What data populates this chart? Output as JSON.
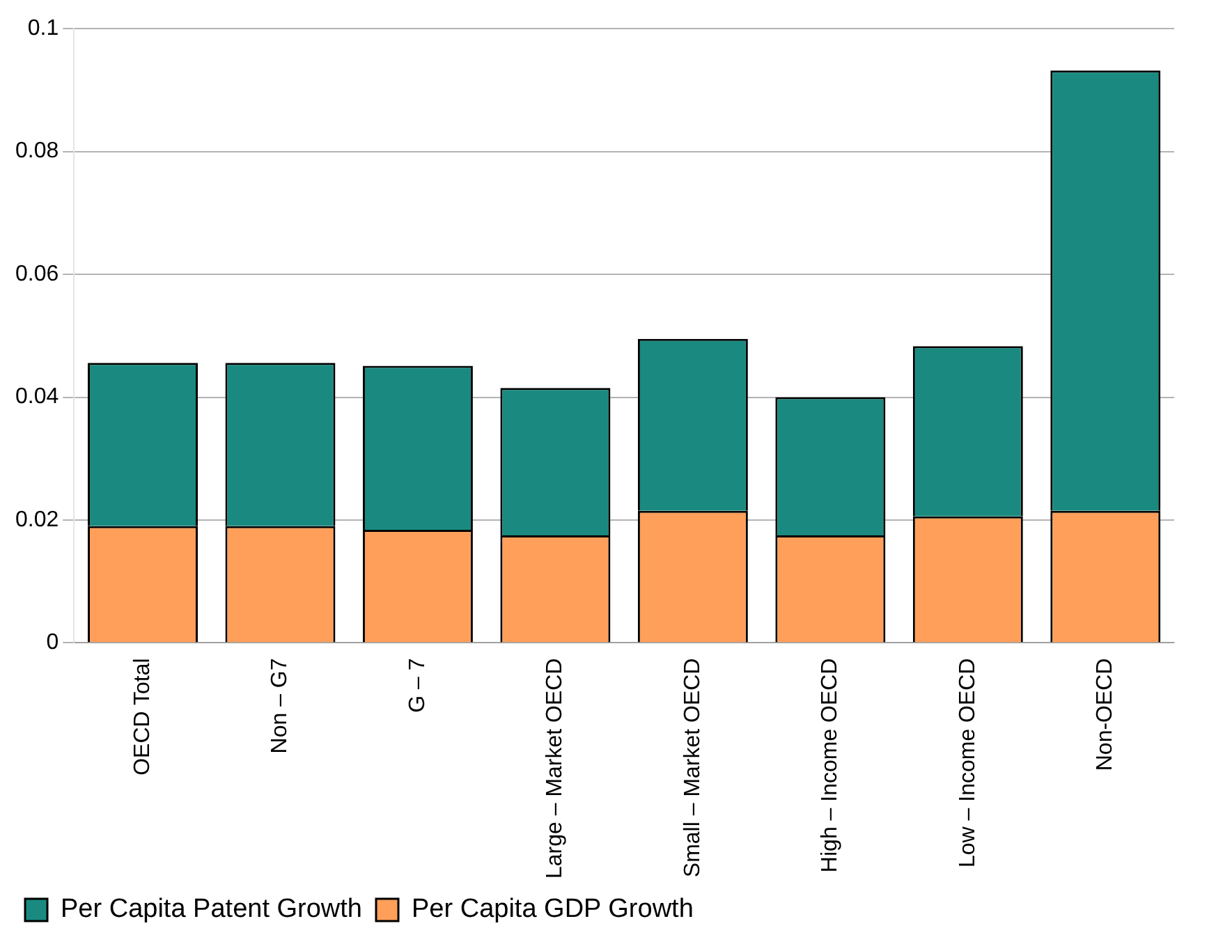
{
  "chart_data": {
    "type": "bar",
    "stacked": true,
    "categories": [
      "OECD Total",
      "Non – G7",
      "G – 7",
      "Large – Market OECD",
      "Small – Market OECD",
      "High – Income OECD",
      "Low – Income OECD",
      "Non-OECD"
    ],
    "series": [
      {
        "name": "Per Capita GDP Growth",
        "color": "#ff9f5a",
        "values": [
          0.019,
          0.019,
          0.0184,
          0.0175,
          0.0215,
          0.0175,
          0.0206,
          0.0215
        ]
      },
      {
        "name": "Per Capita Patent Growth",
        "color": "#1a8a80",
        "values": [
          0.0266,
          0.0266,
          0.0267,
          0.024,
          0.028,
          0.0225,
          0.0277,
          0.0717
        ]
      }
    ],
    "ylim": [
      0,
      0.1
    ],
    "yticks": [
      0,
      0.02,
      0.04,
      0.06,
      0.08,
      0.1
    ],
    "grid": "y",
    "legend": "bottom left"
  }
}
